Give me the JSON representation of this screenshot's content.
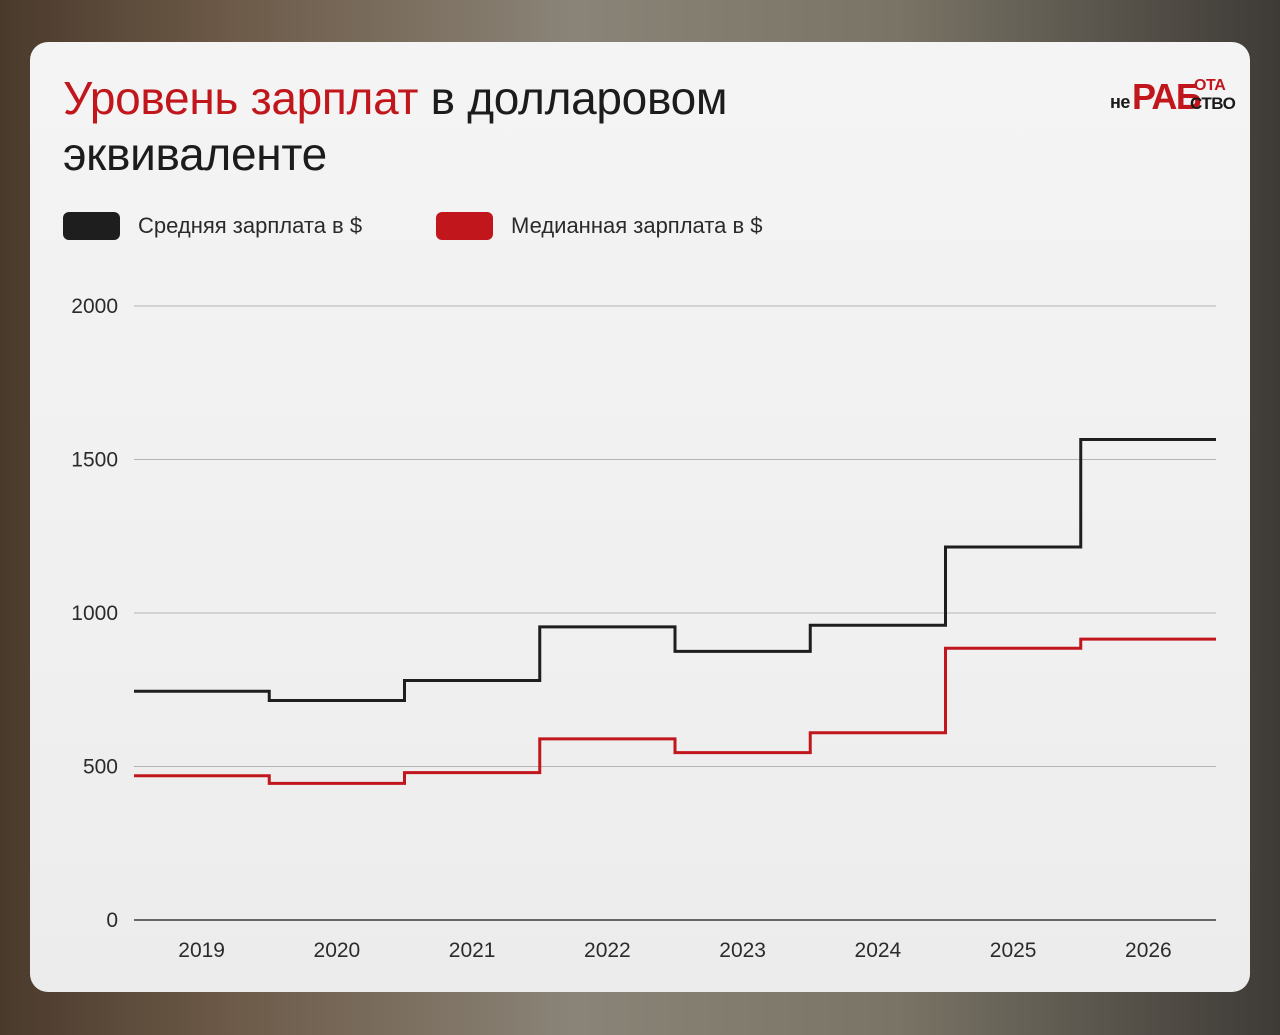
{
  "header": {
    "title_accent": "Уровень зарплат",
    "title_rest": " в долларовом эквиваленте"
  },
  "logo": {
    "ne": "не",
    "rab": "РАБ",
    "ota": "ОТА",
    "stvo": "СТВО"
  },
  "legend": [
    {
      "label": "Средняя зарплата в $",
      "color": "#1e1e1e"
    },
    {
      "label": "Медианная зарплата в $",
      "color": "#c0161c"
    }
  ],
  "chart_data": {
    "type": "line",
    "step": true,
    "categories": [
      "2019",
      "2020",
      "2021",
      "2022",
      "2023",
      "2024",
      "2025",
      "2026"
    ],
    "series": [
      {
        "name": "Средняя зарплата в $",
        "color": "#1e1e1e",
        "values": [
          745,
          715,
          780,
          955,
          875,
          960,
          1215,
          1565
        ]
      },
      {
        "name": "Медианная зарплата в $",
        "color": "#c0161c",
        "values": [
          470,
          445,
          480,
          590,
          545,
          610,
          885,
          915
        ]
      }
    ],
    "yticks": [
      "0",
      "500",
      "1000",
      "1500",
      "2000"
    ],
    "ylim": [
      0,
      2000
    ],
    "grid": true,
    "legend_position": "top-left"
  }
}
